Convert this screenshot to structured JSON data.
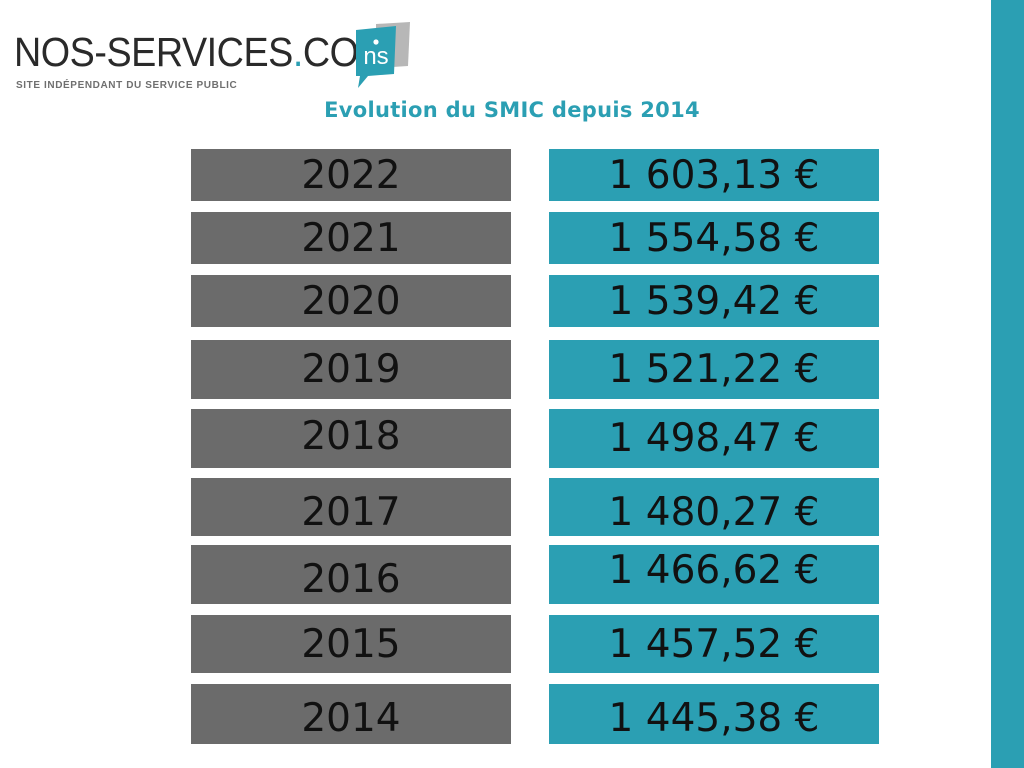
{
  "brand": {
    "name_main": "NOS-SERVICES",
    "name_dot": ".",
    "name_tld": "COM",
    "tagline": "SITE INDÉPENDANT DU SERVICE PUBLIC",
    "mark_text": "ns",
    "accent_color": "#2b9fb3",
    "mark_icon": "speech-bubble-ns-logo-icon"
  },
  "title": "Evolution du SMIC depuis 2014",
  "table": {
    "rows": [
      {
        "year": "2022",
        "amount": "1 603,13 €"
      },
      {
        "year": "2021",
        "amount": "1 554,58 €"
      },
      {
        "year": "2020",
        "amount": "1 539,42 €"
      },
      {
        "year": "2019",
        "amount": "1 521,22 €"
      },
      {
        "year": "2018",
        "amount": "1 498,47 €"
      },
      {
        "year": "2017",
        "amount": "1 480,27 €"
      },
      {
        "year": "2016",
        "amount": "1 466,62 €"
      },
      {
        "year": "2015",
        "amount": "1 457,52 €"
      },
      {
        "year": "2014",
        "amount": "1 445,38 €"
      }
    ],
    "year_color": "#6b6b6b",
    "amount_color": "#2b9fb3"
  }
}
